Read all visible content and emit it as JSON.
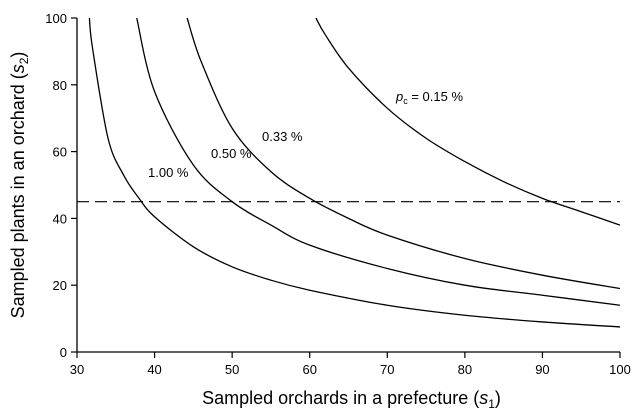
{
  "chart_data": {
    "type": "line",
    "xlabel": {
      "text": "Sampled orchards in a prefecture (",
      "var": "s",
      "sub": "1",
      "close": ")"
    },
    "ylabel": {
      "text": "Sampled plants in an orchard (",
      "var": "s",
      "sub": "2",
      "close": ")"
    },
    "xlim": [
      30,
      100
    ],
    "ylim": [
      0,
      100
    ],
    "xticks": [
      30,
      40,
      50,
      60,
      70,
      80,
      90,
      100
    ],
    "yticks": [
      0,
      20,
      40,
      60,
      80,
      100
    ],
    "grid": false,
    "reference_line": {
      "y": 45,
      "style": "dashed"
    },
    "series": [
      {
        "label": "1.00 %",
        "x": [
          31.6,
          32,
          34,
          36,
          38,
          40,
          45,
          50,
          55,
          60,
          70,
          80,
          90,
          100
        ],
        "y": [
          100,
          91,
          64,
          53,
          46,
          40.5,
          31.5,
          25.5,
          21.5,
          18.5,
          14,
          11,
          9,
          7.5
        ]
      },
      {
        "label": "0.50 %",
        "x": [
          37.7,
          40,
          45,
          50,
          55,
          60,
          70,
          80,
          90,
          100
        ],
        "y": [
          100,
          78,
          56,
          45,
          38,
          32,
          25,
          20,
          17,
          14
        ]
      },
      {
        "label": "0.33 %",
        "x": [
          44.2,
          46,
          50,
          55,
          60,
          65,
          70,
          80,
          90,
          100
        ],
        "y": [
          100,
          87,
          67,
          54,
          46,
          40,
          35,
          28,
          23,
          19
        ]
      },
      {
        "label_prefix": "p",
        "label_sub": "c",
        "label": " = 0.15 %",
        "x": [
          60.8,
          62,
          65,
          70,
          75,
          80,
          85,
          90,
          95,
          100
        ],
        "y": [
          100,
          95,
          85,
          73,
          64,
          57,
          51,
          46,
          42,
          38
        ]
      }
    ]
  }
}
